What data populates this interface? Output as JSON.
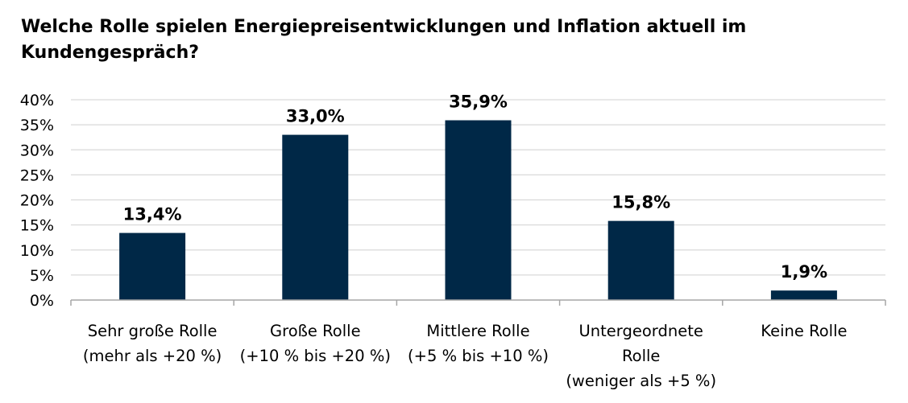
{
  "chart_data": {
    "type": "bar",
    "title": "Welche Rolle spielen Energiepreisentwicklungen und Inflation aktuell im Kundengespräch?",
    "categories": [
      [
        "Sehr große Rolle",
        "(mehr als +20 %)"
      ],
      [
        "Große Rolle",
        "(+10 % bis +20 %)"
      ],
      [
        "Mittlere Rolle",
        "(+5 % bis +10 %)"
      ],
      [
        "Untergeordnete",
        "Rolle",
        "(weniger als +5 %)"
      ],
      [
        "Keine Rolle"
      ]
    ],
    "values": [
      13.4,
      33.0,
      35.9,
      15.8,
      1.9
    ],
    "data_labels": [
      "13,4%",
      "33,0%",
      "35,9%",
      "15,8%",
      "1,9%"
    ],
    "ylim": [
      0,
      40
    ],
    "yticks": [
      0,
      5,
      10,
      15,
      20,
      25,
      30,
      35,
      40
    ],
    "ytick_labels": [
      "0%",
      "5%",
      "10%",
      "15%",
      "20%",
      "25%",
      "30%",
      "35%",
      "40%"
    ],
    "grid": true,
    "legend": "none",
    "bar_color": "#002847",
    "grid_color": "#d9d9d9",
    "axis_color": "#a6a6a6"
  }
}
